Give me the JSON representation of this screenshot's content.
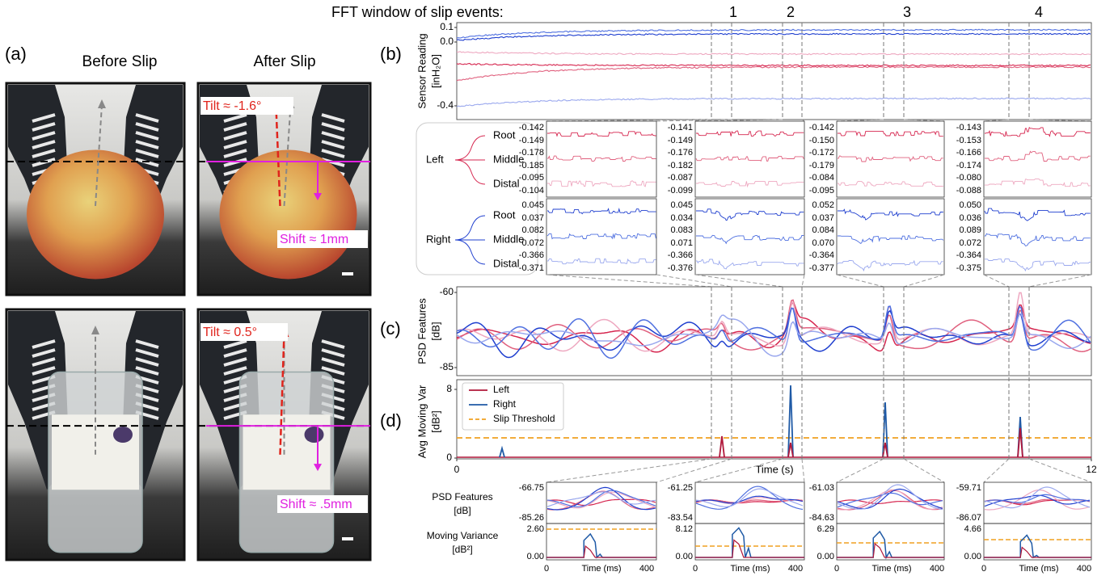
{
  "panel_a": {
    "label": "(a)",
    "columns": [
      "Before Slip",
      "After Slip"
    ],
    "apple": {
      "tilt": "Tilt ≈ -1.6°",
      "shift": "Shift ≈ 1mm"
    },
    "jar": {
      "tilt": "Tilt ≈ 0.5°",
      "shift": "Shift ≈ .5mm"
    }
  },
  "header": {
    "title": "FFT window of slip events:",
    "events": [
      "1",
      "2",
      "3",
      "4"
    ]
  },
  "panel_b": {
    "label": "(b)",
    "y_label": "Sensor Reading",
    "y_unit": "[inH₂O]",
    "yticks": [
      "0.1",
      "0.0",
      "-0.4"
    ],
    "legend": [
      {
        "name": "Left",
        "sensors": [
          "Root",
          "Middle",
          "Distal"
        ]
      },
      {
        "name": "Right",
        "sensors": [
          "Root",
          "Middle",
          "Distal"
        ]
      }
    ],
    "zooms": [
      {
        "left": [
          "-0.142",
          "-0.149",
          "-0.178",
          "-0.185",
          "-0.095",
          "-0.104"
        ],
        "right": [
          "0.045",
          "0.037",
          "0.082",
          "0.072",
          "-0.366",
          "-0.371"
        ]
      },
      {
        "left": [
          "-0.141",
          "-0.149",
          "-0.176",
          "-0.182",
          "-0.087",
          "-0.099"
        ],
        "right": [
          "0.045",
          "0.034",
          "0.083",
          "0.071",
          "-0.366",
          "-0.376"
        ]
      },
      {
        "left": [
          "-0.142",
          "-0.150",
          "-0.172",
          "-0.179",
          "-0.084",
          "-0.095"
        ],
        "right": [
          "0.052",
          "0.037",
          "0.084",
          "0.070",
          "-0.364",
          "-0.377"
        ]
      },
      {
        "left": [
          "-0.143",
          "-0.153",
          "-0.166",
          "-0.174",
          "-0.080",
          "-0.088"
        ],
        "right": [
          "0.050",
          "0.036",
          "0.089",
          "0.072",
          "-0.364",
          "-0.375"
        ]
      }
    ]
  },
  "panel_c": {
    "label": "(c)",
    "y_label": "PSD Features",
    "y_unit": "[dB]",
    "yticks": [
      "-60",
      "-85"
    ]
  },
  "panel_d": {
    "label": "(d)",
    "y_label": "Avg Moving Var",
    "y_unit": "[dB²]",
    "yticks": [
      "8",
      "0"
    ],
    "xticks": [
      "0",
      "12"
    ],
    "x_label": "Time (s)",
    "legend": [
      "Left",
      "Right",
      "Slip Threshold"
    ]
  },
  "panel_e": {
    "psd_label": "PSD Features",
    "psd_unit": "[dB]",
    "var_label": "Moving Variance",
    "var_unit": "[dB²]",
    "x_label": "Time (ms)",
    "xticks": [
      "0",
      "400"
    ],
    "windows": [
      {
        "psd": [
          "-66.75",
          "-85.26"
        ],
        "var": [
          "2.60",
          "0.00"
        ]
      },
      {
        "psd": [
          "-61.25",
          "-83.54"
        ],
        "var": [
          "8.12",
          "0.00"
        ]
      },
      {
        "psd": [
          "-61.03",
          "-84.63"
        ],
        "var": [
          "6.29",
          "0.00"
        ]
      },
      {
        "psd": [
          "-59.71",
          "-86.07"
        ],
        "var": [
          "4.66",
          "0.00"
        ]
      }
    ]
  }
}
